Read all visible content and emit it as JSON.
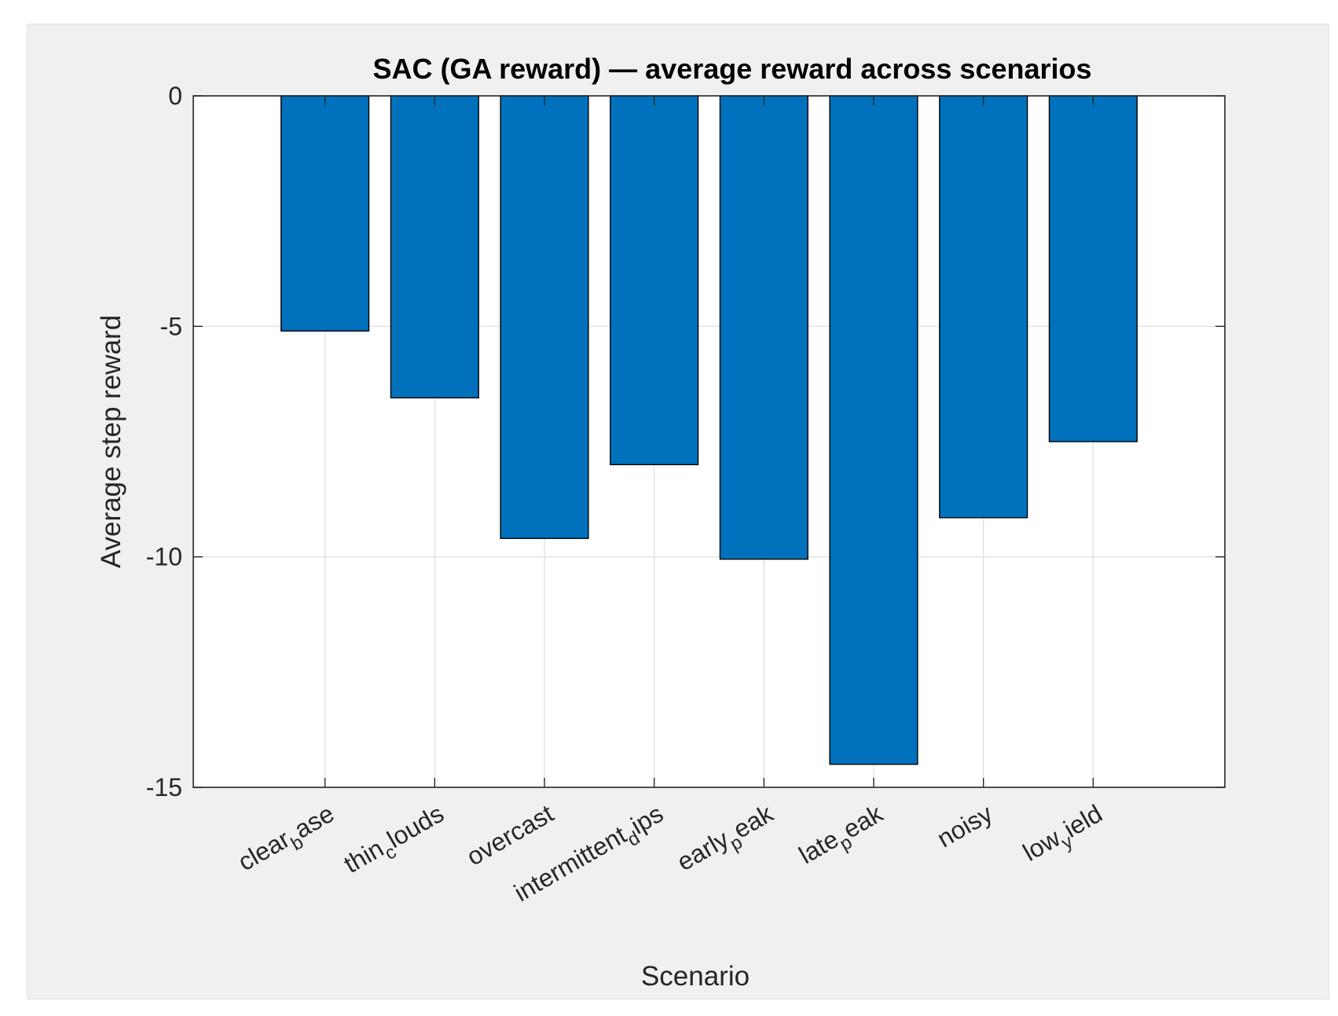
{
  "chart_data": {
    "type": "bar",
    "title": "SAC (GA reward) — average reward across scenarios",
    "xlabel": "Scenario",
    "ylabel": "Average step reward",
    "categories": [
      {
        "main": "clear",
        "sub": "b",
        "rest": "ase"
      },
      {
        "main": "thin",
        "sub": "c",
        "rest": "louds"
      },
      {
        "main": "overcast",
        "sub": "",
        "rest": ""
      },
      {
        "main": "intermittent",
        "sub": "d",
        "rest": "ips"
      },
      {
        "main": "early",
        "sub": "p",
        "rest": "eak"
      },
      {
        "main": "late",
        "sub": "p",
        "rest": "eak"
      },
      {
        "main": "noisy",
        "sub": "",
        "rest": ""
      },
      {
        "main": "low",
        "sub": "y",
        "rest": "ield"
      }
    ],
    "values": [
      -5.1,
      -6.55,
      -9.6,
      -8.0,
      -10.05,
      -14.5,
      -9.15,
      -7.5
    ],
    "ylim": [
      -15,
      0
    ],
    "yticks": [
      0,
      -5,
      -10,
      -15
    ],
    "xlim": [
      -0.2,
      9.2
    ],
    "grid": true,
    "bar_color": "#0072BD"
  }
}
